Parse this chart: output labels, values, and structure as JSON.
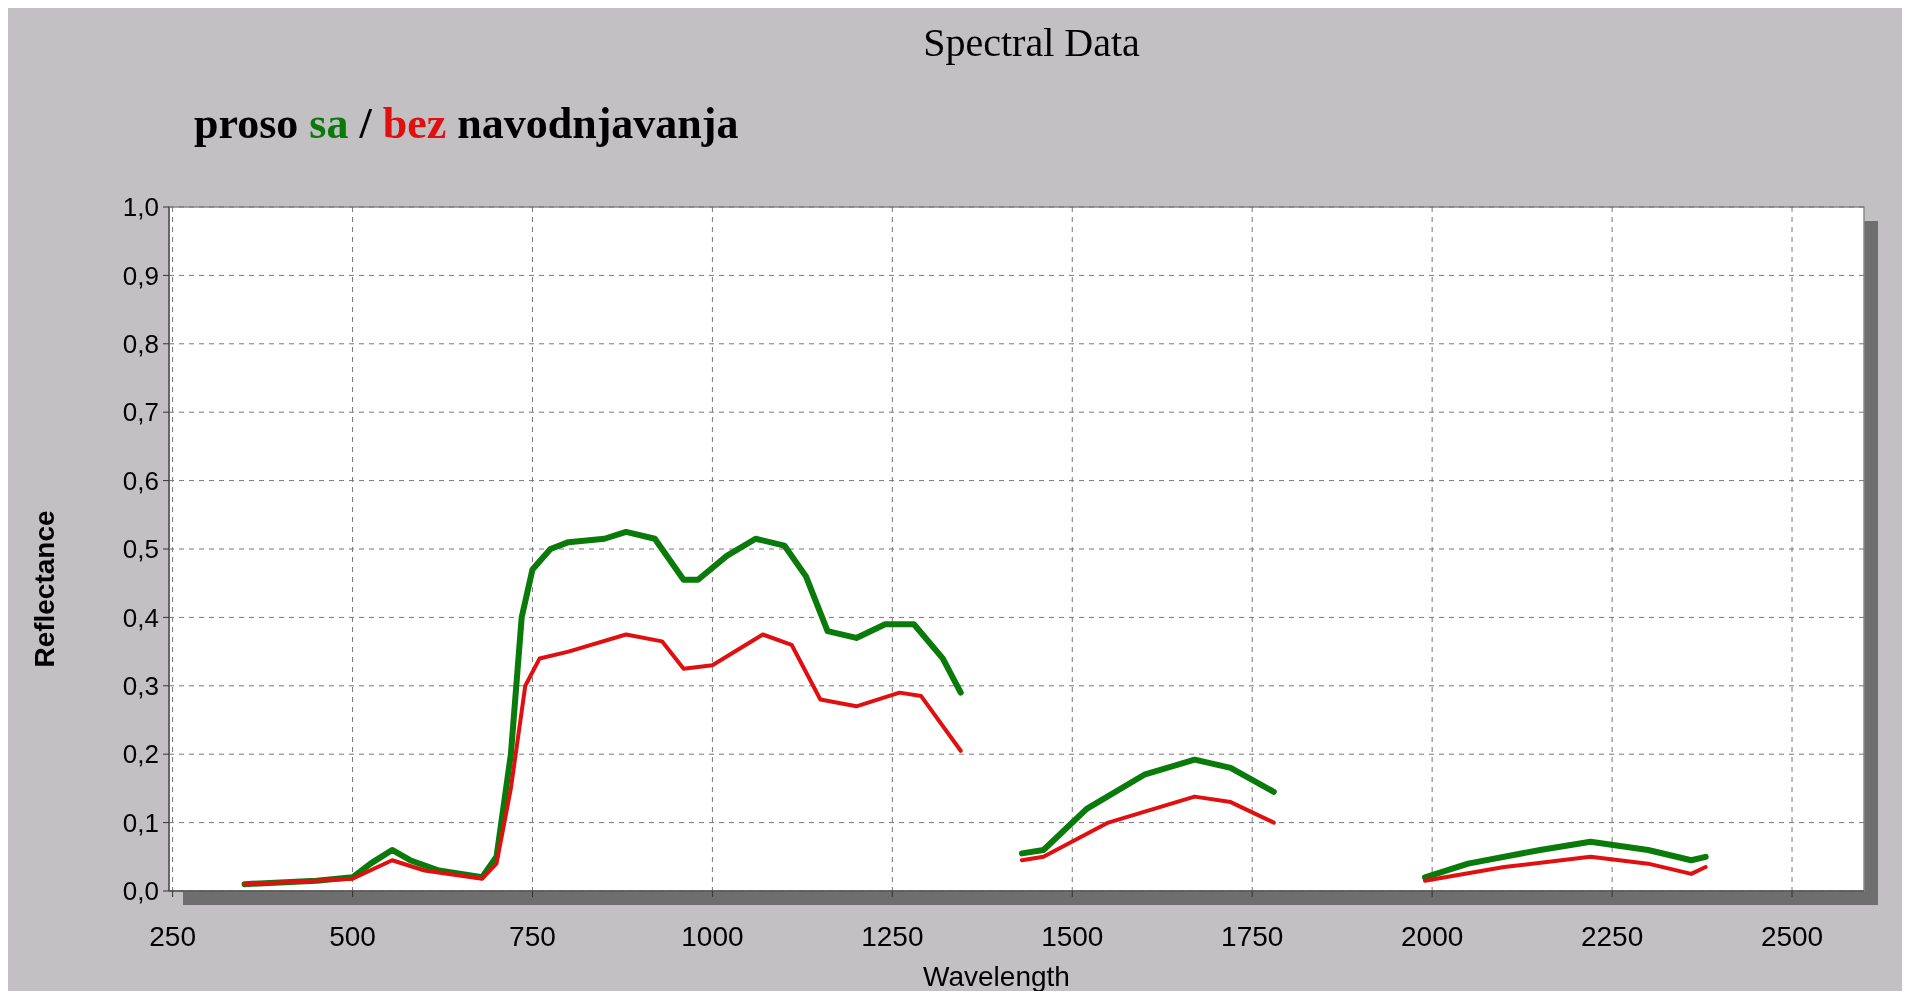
{
  "chart_data": {
    "type": "line",
    "title": "Spectral Data",
    "subtitle": "proso sa / bez navodnjavanja",
    "xlabel": "Wavelength",
    "ylabel": "Reflectance",
    "xlim": [
      245,
      2600
    ],
    "xticks": [
      250,
      500,
      750,
      1000,
      1250,
      1500,
      1750,
      2000,
      2250,
      2500
    ],
    "ylim": [
      0,
      1
    ],
    "yticks": [
      {
        "value": 0,
        "label": "0,0"
      },
      {
        "value": 0.1,
        "label": "0,1"
      },
      {
        "value": 0.2,
        "label": "0,2"
      },
      {
        "value": 0.3,
        "label": "0,3"
      },
      {
        "value": 0.4,
        "label": "0,4"
      },
      {
        "value": 0.5,
        "label": "0,5"
      },
      {
        "value": 0.6,
        "label": "0,6"
      },
      {
        "value": 0.7,
        "label": "0,7"
      },
      {
        "value": 0.8,
        "label": "0,8"
      },
      {
        "value": 0.9,
        "label": "0,9"
      },
      {
        "value": 1,
        "label": "1,0"
      }
    ],
    "grid": true,
    "series": [
      {
        "color": "#0a7a0a",
        "x": [
          350,
          450,
          500,
          525,
          555,
          580,
          620,
          680,
          700,
          720,
          735,
          750,
          775,
          800,
          850,
          880,
          920,
          960,
          980,
          1020,
          1060,
          1100,
          1130,
          1160,
          1200,
          1240,
          1280,
          1320,
          1345,
          null,
          1430,
          1460,
          1520,
          1600,
          1670,
          1720,
          1780,
          null,
          1990,
          2050,
          2150,
          2220,
          2300,
          2360,
          2380
        ],
        "values": [
          0.01,
          0.015,
          0.02,
          0.04,
          0.06,
          0.045,
          0.03,
          0.02,
          0.05,
          0.2,
          0.4,
          0.47,
          0.5,
          0.51,
          0.515,
          0.525,
          0.515,
          0.455,
          0.455,
          0.49,
          0.515,
          0.505,
          0.46,
          0.38,
          0.37,
          0.39,
          0.39,
          0.34,
          0.29,
          null,
          0.055,
          0.06,
          0.12,
          0.17,
          0.192,
          0.18,
          0.145,
          null,
          0.02,
          0.04,
          0.06,
          0.072,
          0.06,
          0.045,
          0.05
        ]
      },
      {
        "color": "#e01010",
        "x": [
          350,
          500,
          555,
          600,
          680,
          700,
          720,
          740,
          760,
          800,
          880,
          930,
          960,
          1000,
          1070,
          1110,
          1150,
          1200,
          1260,
          1290,
          1345,
          null,
          1430,
          1460,
          1550,
          1670,
          1720,
          1780,
          null,
          1990,
          2100,
          2220,
          2300,
          2360,
          2380
        ],
        "values": [
          0.01,
          0.018,
          0.045,
          0.03,
          0.018,
          0.04,
          0.15,
          0.3,
          0.34,
          0.35,
          0.375,
          0.365,
          0.325,
          0.33,
          0.375,
          0.36,
          0.28,
          0.27,
          0.29,
          0.285,
          0.205,
          null,
          0.045,
          0.05,
          0.1,
          0.138,
          0.13,
          0.1,
          null,
          0.015,
          0.035,
          0.05,
          0.04,
          0.025,
          0.035
        ]
      }
    ]
  }
}
